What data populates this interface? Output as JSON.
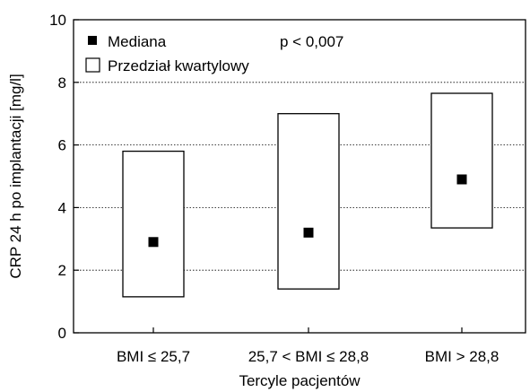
{
  "colors": {
    "background": "#ffffff",
    "box_fill": "#ffffff",
    "box_stroke": "#000000",
    "median_marker": "#000000",
    "grid": "#000000"
  },
  "chart_data": {
    "type": "box",
    "title": "",
    "xlabel": "Tercyle pacjentów",
    "ylabel": "CRP 24 h po implantacji [mg/l]",
    "ylim": [
      0,
      10
    ],
    "yticks": [
      0,
      2,
      4,
      6,
      8,
      10
    ],
    "grid": "horizontal-dotted",
    "categories": [
      "BMI ≤ 25,7",
      "25,7 < BMI ≤ 28,8",
      "BMI > 28,8"
    ],
    "median": [
      2.9,
      3.2,
      4.9
    ],
    "q1": [
      1.15,
      1.4,
      3.35
    ],
    "q3": [
      5.8,
      7.0,
      7.65
    ],
    "legend": {
      "position": "top-left",
      "median_label": "Mediana",
      "iqr_label": "Przedział kwartylowy"
    },
    "annotation": "p < 0,007"
  }
}
